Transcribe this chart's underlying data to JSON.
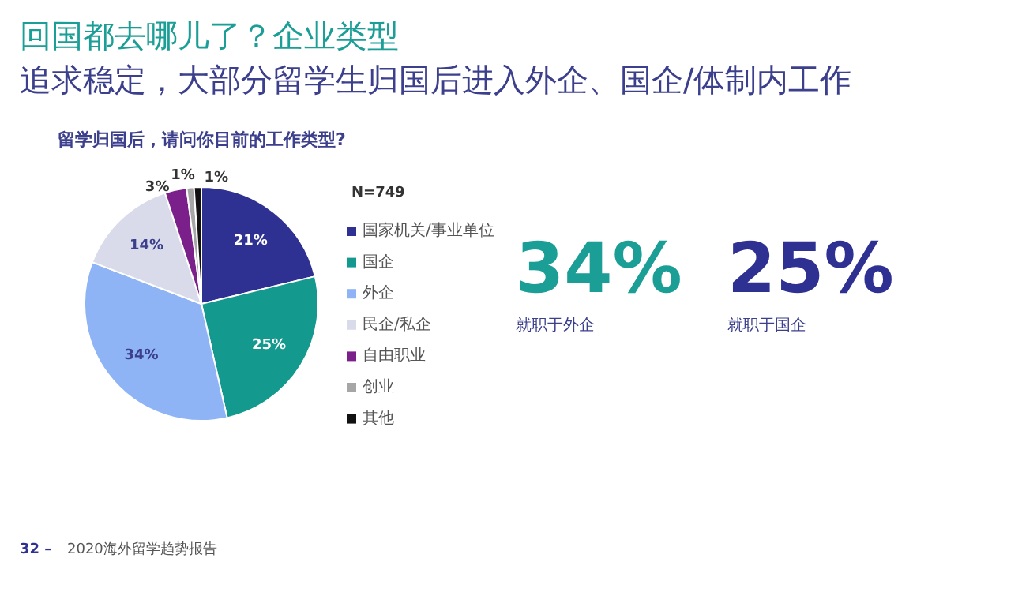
{
  "chart_data": {
    "type": "pie",
    "title": "回国都去哪儿了？企业类型",
    "subtitle": "追求稳定，大部分留学生归国后进入外企、国企/体制内工作",
    "categories": [
      "国家机关/事业单位",
      "国企",
      "外企",
      "民企/私企",
      "自由职业",
      "创业",
      "其他"
    ],
    "values": [
      21,
      25,
      34,
      14,
      3,
      1,
      1
    ],
    "colors": [
      "#2e3192",
      "#13998e",
      "#8fb4f5",
      "#d9dbeb",
      "#7b1f8a",
      "#a6a6a6",
      "#111111"
    ],
    "value_labels": [
      "21%",
      "25%",
      "34%",
      "14%",
      "3%",
      "1%",
      "1%"
    ],
    "legend": "right",
    "annotations": [
      "留学归国后，请问你目前的工作类型?",
      "N=749",
      "34%",
      "就职于外企",
      "25%",
      "就职于国企",
      "32 –",
      "2020海外留学趋势报告"
    ]
  }
}
